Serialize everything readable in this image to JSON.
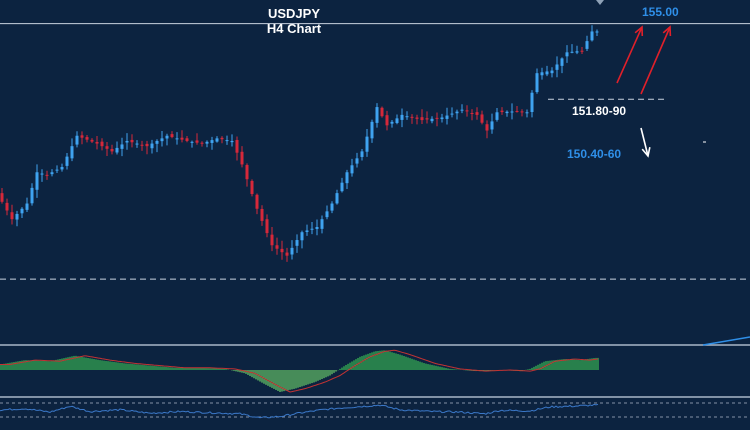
{
  "chart_data": {
    "type": "candlestick",
    "title": "USDJPY",
    "subtitle": "H4 Chart",
    "colors": {
      "background": "#0c2340",
      "bull": "#3fa3f0",
      "bear": "#d6283a",
      "osc_up": "#3cbf55",
      "osc_down": "#6fd36a",
      "signal": "#c33333",
      "rsi": "#3b78c8",
      "label_white": "#ffffff",
      "label_blue": "#2f8fe8",
      "arrow_red": "#e0202a",
      "arrow_white": "#ffffff"
    },
    "price_path": [
      [
        0,
        150.05
      ],
      [
        3,
        149.55
      ],
      [
        6,
        149.85
      ],
      [
        8,
        150.45
      ],
      [
        10,
        150.4
      ],
      [
        13,
        150.55
      ],
      [
        16,
        151.15
      ],
      [
        20,
        151.0
      ],
      [
        23,
        150.85
      ],
      [
        26,
        151.05
      ],
      [
        30,
        150.95
      ],
      [
        34,
        151.15
      ],
      [
        38,
        151.05
      ],
      [
        41,
        151.0
      ],
      [
        44,
        151.1
      ],
      [
        47,
        151.05
      ],
      [
        49,
        150.6
      ],
      [
        52,
        149.75
      ],
      [
        55,
        149.05
      ],
      [
        58,
        148.85
      ],
      [
        61,
        149.3
      ],
      [
        64,
        149.4
      ],
      [
        67,
        149.85
      ],
      [
        70,
        150.45
      ],
      [
        73,
        150.85
      ],
      [
        76,
        151.7
      ],
      [
        78,
        151.35
      ],
      [
        81,
        151.55
      ],
      [
        85,
        151.45
      ],
      [
        89,
        151.5
      ],
      [
        93,
        151.65
      ],
      [
        96,
        151.55
      ],
      [
        98,
        151.25
      ],
      [
        100,
        151.6
      ],
      [
        104,
        151.62
      ],
      [
        106,
        151.6
      ],
      [
        108,
        152.35
      ],
      [
        111,
        152.4
      ],
      [
        114,
        152.75
      ],
      [
        117,
        152.78
      ],
      [
        119,
        153.15
      ]
    ],
    "levels": [
      {
        "price": 153.3,
        "style": "solid"
      },
      {
        "price": 151.85,
        "style": "dashed"
      },
      {
        "price": 148.4,
        "style": "dashed"
      }
    ],
    "annotations": [
      {
        "label": "155.00",
        "price": 153.45,
        "index": 128,
        "color": "label_blue"
      },
      {
        "label": "151.80-90",
        "price": 151.55,
        "index": 114,
        "color": "label_white"
      },
      {
        "label": "150.40-60",
        "price": 150.72,
        "index": 113,
        "color": "label_blue"
      }
    ],
    "oscillator_path": [
      [
        0,
        0.25
      ],
      [
        5,
        0.45
      ],
      [
        10,
        0.4
      ],
      [
        15,
        0.65
      ],
      [
        20,
        0.45
      ],
      [
        25,
        0.3
      ],
      [
        30,
        0.2
      ],
      [
        35,
        0.1
      ],
      [
        40,
        0.1
      ],
      [
        45,
        0.05
      ],
      [
        49,
        -0.15
      ],
      [
        53,
        -0.65
      ],
      [
        56,
        -1.0
      ],
      [
        59,
        -0.85
      ],
      [
        63,
        -0.55
      ],
      [
        66,
        -0.25
      ],
      [
        69,
        0.2
      ],
      [
        72,
        0.6
      ],
      [
        75,
        0.85
      ],
      [
        77,
        0.9
      ],
      [
        80,
        0.7
      ],
      [
        85,
        0.3
      ],
      [
        90,
        0.05
      ],
      [
        95,
        -0.05
      ],
      [
        100,
        0.0
      ],
      [
        104,
        -0.05
      ],
      [
        106,
        0.05
      ],
      [
        109,
        0.4
      ],
      [
        113,
        0.5
      ],
      [
        116,
        0.45
      ],
      [
        119,
        0.55
      ]
    ],
    "rsi_path": [
      [
        0,
        55
      ],
      [
        5,
        60
      ],
      [
        10,
        48
      ],
      [
        14,
        68
      ],
      [
        18,
        50
      ],
      [
        24,
        56
      ],
      [
        30,
        44
      ],
      [
        36,
        50
      ],
      [
        42,
        46
      ],
      [
        48,
        42
      ],
      [
        52,
        28
      ],
      [
        56,
        33
      ],
      [
        60,
        45
      ],
      [
        64,
        55
      ],
      [
        68,
        62
      ],
      [
        72,
        67
      ],
      [
        76,
        72
      ],
      [
        80,
        56
      ],
      [
        86,
        50
      ],
      [
        92,
        48
      ],
      [
        97,
        42
      ],
      [
        100,
        54
      ],
      [
        106,
        52
      ],
      [
        110,
        66
      ],
      [
        114,
        68
      ],
      [
        119,
        72
      ]
    ],
    "candle_count": 120,
    "price_range": [
      148.0,
      153.6
    ],
    "grid": false,
    "legend": "none"
  }
}
